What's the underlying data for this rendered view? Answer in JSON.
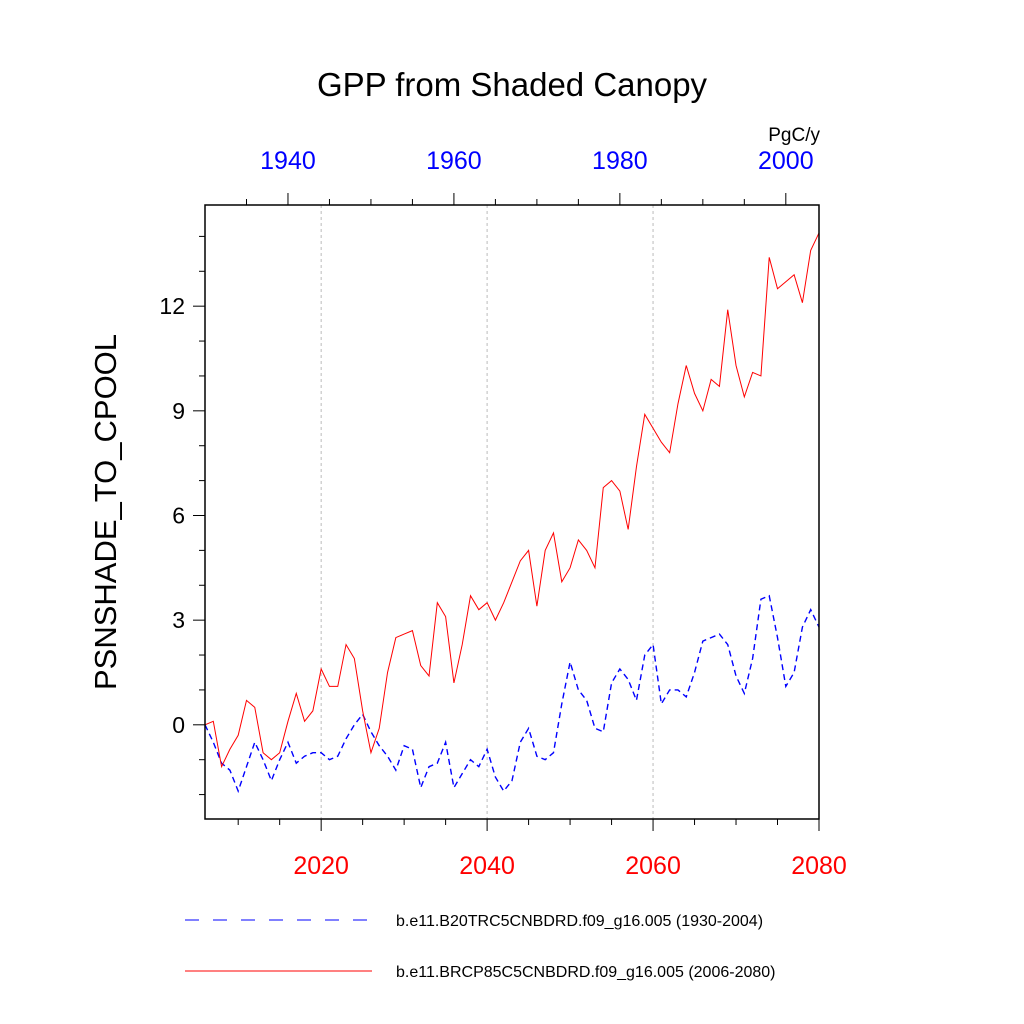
{
  "chart_data": {
    "type": "line",
    "title": "GPP from Shaded Canopy",
    "ylabel": "PSNSHADE_TO_CPOOL",
    "units": "PgC/y",
    "ylim": [
      -2.7,
      14.9
    ],
    "yticks": [
      0,
      3,
      6,
      9,
      12
    ],
    "ytick_labels": [
      "0",
      "3",
      "6",
      "9",
      "12"
    ],
    "grid": "vertical dotted lines at major bottom-axis ticks",
    "bottom_axis": {
      "range": [
        2006,
        2080
      ],
      "ticks": [
        2020,
        2040,
        2060,
        2080
      ],
      "tick_labels": [
        "2020",
        "2040",
        "2060",
        "2080"
      ],
      "color": "#ff0000"
    },
    "top_axis": {
      "range": [
        1930,
        2004
      ],
      "ticks": [
        1940,
        1960,
        1980,
        2000
      ],
      "tick_labels": [
        "1940",
        "1960",
        "1980",
        "2000"
      ],
      "color": "#0000ff"
    },
    "series": [
      {
        "name": "b.e11.B20TRC5CNBDRD.f09_g16.005 (1930-2004)",
        "color": "#0000ff",
        "style": "dashed",
        "axis": "top",
        "x_start": 1930,
        "values": [
          0.0,
          -0.5,
          -1.1,
          -1.3,
          -1.9,
          -1.2,
          -0.5,
          -1.0,
          -1.6,
          -1.0,
          -0.5,
          -1.1,
          -0.9,
          -0.8,
          -0.8,
          -1.0,
          -0.9,
          -0.4,
          0.0,
          0.3,
          -0.2,
          -0.6,
          -0.9,
          -1.3,
          -0.6,
          -0.7,
          -1.8,
          -1.2,
          -1.1,
          -0.5,
          -1.8,
          -1.4,
          -1.0,
          -1.2,
          -0.7,
          -1.5,
          -1.9,
          -1.6,
          -0.5,
          -0.1,
          -0.9,
          -1.0,
          -0.8,
          0.6,
          1.8,
          1.0,
          0.7,
          -0.1,
          -0.2,
          1.2,
          1.6,
          1.3,
          0.7,
          2.0,
          2.3,
          0.6,
          1.0,
          1.0,
          0.8,
          1.5,
          2.4,
          2.5,
          2.6,
          2.3,
          1.4,
          0.9,
          1.9,
          3.6,
          3.7,
          2.5,
          1.1,
          1.5,
          2.8,
          3.3,
          2.8
        ]
      },
      {
        "name": "b.e11.BRCP85C5CNBDRD.f09_g16.005 (2006-2080)",
        "color": "#ff0000",
        "style": "solid",
        "axis": "bottom",
        "x_start": 2006,
        "values": [
          0.0,
          0.1,
          -1.2,
          -0.7,
          -0.3,
          0.7,
          0.5,
          -0.8,
          -1.0,
          -0.8,
          0.1,
          0.9,
          0.1,
          0.4,
          1.6,
          1.1,
          1.1,
          2.3,
          1.9,
          0.4,
          -0.8,
          -0.1,
          1.5,
          2.5,
          2.6,
          2.7,
          1.7,
          1.4,
          3.5,
          3.1,
          1.2,
          2.3,
          3.7,
          3.3,
          3.5,
          3.0,
          3.5,
          4.1,
          4.7,
          5.0,
          3.4,
          5.0,
          5.5,
          4.1,
          4.5,
          5.3,
          5.0,
          4.5,
          6.8,
          7.0,
          6.7,
          5.6,
          7.4,
          8.9,
          8.5,
          8.1,
          7.8,
          9.2,
          10.3,
          9.5,
          9.0,
          9.9,
          9.7,
          11.9,
          10.3,
          9.4,
          10.1,
          10.0,
          13.4,
          12.5,
          12.7,
          12.9,
          12.1,
          13.6,
          14.1
        ]
      }
    ]
  }
}
